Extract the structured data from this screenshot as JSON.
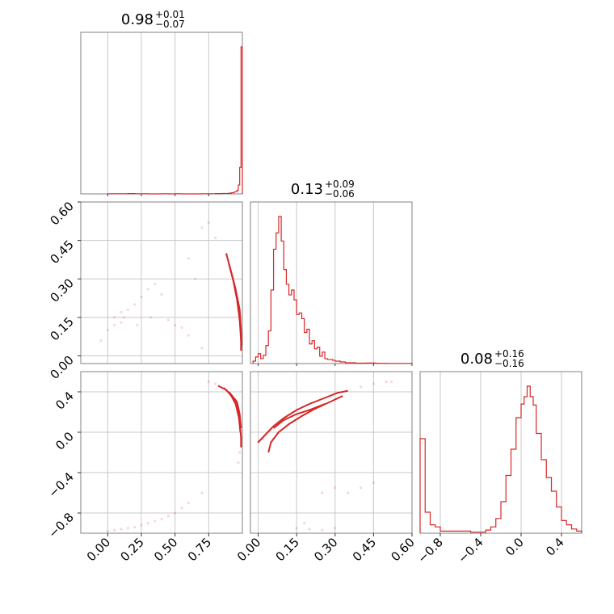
{
  "colors": {
    "accent": "#d62728",
    "frame": "#808080",
    "grid": "#c8c8c8"
  },
  "chart_data": {
    "type": "corner",
    "parameters": [
      {
        "name": "",
        "median": "0.98",
        "plus": "+0.01",
        "minus": "−0.07",
        "range": [
          -0.2,
          1.0
        ],
        "ticks": [
          0.0,
          0.25,
          0.5,
          0.75
        ],
        "tick_labels": [
          "0.00",
          "0.25",
          "0.50",
          "0.75"
        ]
      },
      {
        "name": "",
        "median": "0.13",
        "plus": "+0.09",
        "minus": "−0.06",
        "range": [
          -0.03,
          0.6
        ],
        "ticks": [
          0.0,
          0.15,
          0.3,
          0.45,
          0.6
        ],
        "tick_labels": [
          "0.00",
          "0.15",
          "0.30",
          "0.45",
          "0.60"
        ]
      },
      {
        "name": "",
        "median": "0.08",
        "plus": "+0.16",
        "minus": "−0.16",
        "range": [
          -1.0,
          0.6
        ],
        "ticks": [
          -0.8,
          -0.4,
          0.0,
          0.4
        ],
        "tick_labels": [
          "−0.8",
          "−0.4",
          "0.0",
          "0.4"
        ]
      }
    ],
    "histograms": [
      {
        "param": 0,
        "edges": [
          0.0,
          0.05,
          0.1,
          0.15,
          0.2,
          0.25,
          0.3,
          0.35,
          0.4,
          0.45,
          0.5,
          0.55,
          0.6,
          0.65,
          0.7,
          0.75,
          0.8,
          0.85,
          0.9,
          0.92,
          0.94,
          0.96,
          0.97,
          0.98,
          0.99,
          1.0
        ],
        "counts": [
          1,
          1,
          1,
          2,
          1,
          1,
          0,
          0,
          1,
          0,
          1,
          0,
          0,
          0,
          1,
          1,
          2,
          3,
          5,
          8,
          14,
          25,
          60,
          180,
          1000
        ]
      },
      {
        "param": 1,
        "edges": [
          -0.02,
          -0.01,
          0.0,
          0.01,
          0.02,
          0.03,
          0.04,
          0.05,
          0.06,
          0.07,
          0.08,
          0.09,
          0.1,
          0.11,
          0.12,
          0.13,
          0.14,
          0.15,
          0.16,
          0.17,
          0.18,
          0.19,
          0.2,
          0.21,
          0.22,
          0.23,
          0.24,
          0.25,
          0.26,
          0.27,
          0.28,
          0.29,
          0.3,
          0.31,
          0.32,
          0.33,
          0.34,
          0.35,
          0.38,
          0.42,
          0.46,
          0.5,
          0.6
        ],
        "counts": [
          3,
          8,
          12,
          6,
          10,
          22,
          40,
          90,
          140,
          160,
          180,
          150,
          115,
          97,
          84,
          90,
          78,
          60,
          62,
          55,
          38,
          42,
          24,
          28,
          18,
          20,
          9,
          14,
          6,
          5,
          5,
          4,
          3,
          3,
          2,
          2,
          1,
          1,
          0.5,
          0.6,
          0.3,
          0.2
        ]
      },
      {
        "param": 2,
        "edges": [
          -1.0,
          -0.95,
          -0.9,
          -0.85,
          -0.8,
          -0.7,
          -0.6,
          -0.5,
          -0.4,
          -0.35,
          -0.3,
          -0.25,
          -0.2,
          -0.15,
          -0.1,
          -0.05,
          0.0,
          0.03,
          0.06,
          0.09,
          0.12,
          0.15,
          0.2,
          0.25,
          0.3,
          0.35,
          0.4,
          0.45,
          0.5,
          0.55,
          0.6
        ],
        "counts": [
          90,
          20,
          8,
          6,
          2,
          2,
          2,
          1,
          1,
          3,
          6,
          14,
          30,
          55,
          80,
          110,
          123,
          130,
          140,
          130,
          122,
          95,
          70,
          53,
          40,
          25,
          12,
          8,
          4,
          2
        ]
      }
    ],
    "pairs": [
      {
        "x_param": 0,
        "y_param": 1,
        "contours": [
          [
            [
              0.88,
              0.4
            ],
            [
              0.9,
              0.36
            ],
            [
              0.92,
              0.32
            ],
            [
              0.95,
              0.26
            ],
            [
              0.98,
              0.18
            ],
            [
              0.99,
              0.1
            ],
            [
              0.99,
              0.02
            ]
          ],
          [
            [
              0.9,
              0.36
            ],
            [
              0.93,
              0.3
            ],
            [
              0.96,
              0.22
            ],
            [
              0.98,
              0.14
            ],
            [
              0.99,
              0.06
            ]
          ],
          [
            [
              0.91,
              0.34
            ],
            [
              0.94,
              0.28
            ],
            [
              0.97,
              0.2
            ],
            [
              0.985,
              0.12
            ],
            [
              0.995,
              0.04
            ]
          ]
        ],
        "scatter": [
          [
            -0.05,
            0.06
          ],
          [
            0.0,
            0.1
          ],
          [
            0.05,
            0.15
          ],
          [
            0.1,
            0.17
          ],
          [
            0.12,
            0.15
          ],
          [
            0.15,
            0.18
          ],
          [
            0.2,
            0.2
          ],
          [
            0.25,
            0.23
          ],
          [
            0.3,
            0.26
          ],
          [
            0.35,
            0.28
          ],
          [
            0.4,
            0.24
          ],
          [
            0.45,
            0.14
          ],
          [
            0.5,
            0.12
          ],
          [
            0.55,
            0.11
          ],
          [
            0.6,
            0.38
          ],
          [
            0.65,
            0.3
          ],
          [
            0.7,
            0.5
          ],
          [
            0.75,
            0.52
          ],
          [
            0.8,
            0.46
          ],
          [
            0.22,
            0.12
          ],
          [
            0.32,
            0.15
          ],
          [
            0.05,
            0.12
          ],
          [
            0.1,
            0.13
          ],
          [
            0.6,
            0.08
          ],
          [
            0.7,
            0.03
          ]
        ]
      },
      {
        "x_param": 0,
        "y_param": 2,
        "contours": [
          [
            [
              0.82,
              0.46
            ],
            [
              0.88,
              0.42
            ],
            [
              0.93,
              0.34
            ],
            [
              0.96,
              0.26
            ],
            [
              0.98,
              0.1
            ],
            [
              0.99,
              -0.05
            ],
            [
              0.99,
              -0.15
            ]
          ],
          [
            [
              0.86,
              0.44
            ],
            [
              0.91,
              0.38
            ],
            [
              0.95,
              0.28
            ],
            [
              0.975,
              0.14
            ],
            [
              0.985,
              0.0
            ]
          ],
          [
            [
              0.9,
              0.4
            ],
            [
              0.96,
              0.3
            ],
            [
              0.98,
              0.18
            ],
            [
              0.99,
              0.04
            ]
          ]
        ],
        "scatter": [
          [
            0.0,
            -0.98
          ],
          [
            0.05,
            -0.97
          ],
          [
            0.1,
            -0.96
          ],
          [
            0.15,
            -0.95
          ],
          [
            0.2,
            -0.94
          ],
          [
            0.25,
            -0.92
          ],
          [
            0.3,
            -0.9
          ],
          [
            0.35,
            -0.88
          ],
          [
            0.4,
            -0.86
          ],
          [
            0.45,
            -0.83
          ],
          [
            0.5,
            -0.8
          ],
          [
            0.55,
            -0.75
          ],
          [
            0.6,
            -0.7
          ],
          [
            0.7,
            -0.6
          ],
          [
            0.75,
            0.5
          ],
          [
            0.8,
            0.48
          ],
          [
            0.98,
            -0.2
          ],
          [
            0.97,
            -0.3
          ]
        ]
      },
      {
        "x_param": 1,
        "y_param": 2,
        "contours": [
          [
            [
              0.0,
              -0.1
            ],
            [
              0.03,
              -0.02
            ],
            [
              0.06,
              0.06
            ],
            [
              0.1,
              0.14
            ],
            [
              0.15,
              0.22
            ],
            [
              0.2,
              0.28
            ],
            [
              0.26,
              0.34
            ],
            [
              0.31,
              0.39
            ],
            [
              0.35,
              0.41
            ]
          ],
          [
            [
              0.04,
              -0.2
            ],
            [
              0.05,
              -0.1
            ],
            [
              0.08,
              0.0
            ],
            [
              0.12,
              0.08
            ],
            [
              0.17,
              0.16
            ],
            [
              0.22,
              0.23
            ],
            [
              0.28,
              0.3
            ],
            [
              0.33,
              0.36
            ]
          ],
          [
            [
              0.06,
              0.04
            ],
            [
              0.1,
              0.12
            ],
            [
              0.15,
              0.18
            ],
            [
              0.2,
              0.22
            ],
            [
              0.26,
              0.28
            ]
          ]
        ],
        "scatter": [
          [
            0.4,
            0.45
          ],
          [
            0.45,
            0.48
          ],
          [
            0.5,
            0.5
          ],
          [
            0.52,
            0.5
          ],
          [
            0.0,
            -0.1
          ],
          [
            0.02,
            -0.07
          ],
          [
            0.25,
            -0.6
          ],
          [
            0.3,
            -0.55
          ],
          [
            0.35,
            -0.6
          ],
          [
            0.4,
            -0.55
          ],
          [
            0.45,
            -0.5
          ],
          [
            0.15,
            -0.95
          ],
          [
            0.2,
            -0.96
          ],
          [
            0.25,
            -0.97
          ],
          [
            0.18,
            -0.9
          ],
          [
            0.3,
            -0.95
          ]
        ]
      }
    ]
  }
}
